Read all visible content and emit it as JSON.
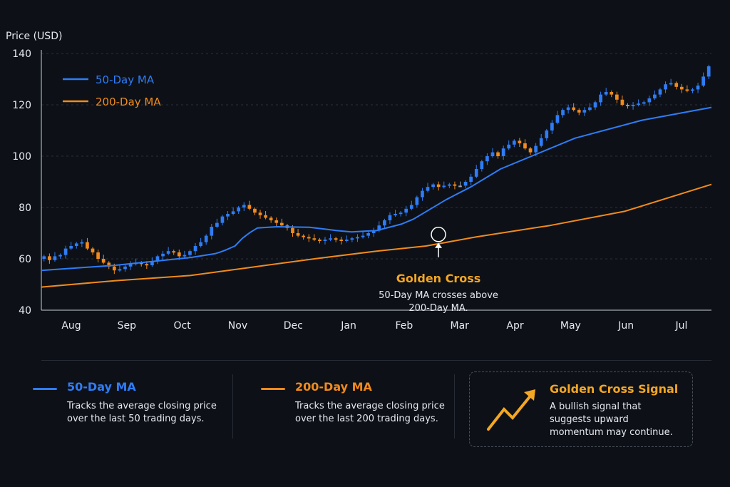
{
  "colors": {
    "bg": "#0d1117",
    "up": "#2f7cf6",
    "down": "#f28a1c",
    "neutral": "#9aa0a8",
    "ma50": "#2f7cf6",
    "ma200": "#f28a1c",
    "accent": "#f5a623"
  },
  "chart_data": {
    "type": "candlestick",
    "ylabel": "Price (USD)",
    "ylim": [
      40,
      140
    ],
    "yticks": [
      40,
      60,
      80,
      100,
      120,
      140
    ],
    "months": [
      "Aug",
      "Sep",
      "Oct",
      "Nov",
      "Dec",
      "Jan",
      "Feb",
      "Mar",
      "Apr",
      "May",
      "Jun",
      "Jul"
    ],
    "grid": true,
    "legend_position": "top-left",
    "legend": [
      {
        "name": "50-Day MA",
        "color": "#2f7cf6"
      },
      {
        "name": "200-Day MA",
        "color": "#f28a1c"
      }
    ],
    "candle_closes": [
      61,
      59.5,
      61,
      61.5,
      64,
      65,
      66,
      66.5,
      64,
      62.5,
      60,
      58.5,
      57,
      55.5,
      56,
      57,
      58,
      58.5,
      58,
      57.5,
      59,
      61,
      62,
      63,
      62.5,
      61,
      61.5,
      63,
      65,
      66.5,
      69,
      72.5,
      74,
      76.5,
      77.5,
      78.5,
      80,
      81,
      79.5,
      78,
      77,
      76,
      75,
      74,
      73,
      72,
      70,
      69,
      68.5,
      68,
      67.5,
      67,
      67.5,
      68,
      67.5,
      67,
      67.5,
      68,
      68.5,
      69,
      70,
      71,
      73,
      75,
      77,
      77.5,
      78,
      79.5,
      81,
      84,
      86.5,
      88,
      89,
      88,
      88.5,
      89,
      88.5,
      88.5,
      90,
      92,
      95,
      98,
      100,
      101.5,
      100,
      103,
      104.5,
      106,
      105,
      103,
      101.5,
      104,
      107,
      110,
      113,
      116,
      118,
      119,
      118,
      117,
      118,
      119,
      121,
      124,
      125,
      124,
      122,
      120,
      119.5,
      120,
      120.5,
      121,
      122.5,
      124,
      126,
      128,
      128.5,
      127,
      126,
      125.5,
      126,
      127.5,
      131,
      135
    ],
    "ma50": [
      [
        0,
        55.5
      ],
      [
        30,
        57.5
      ],
      [
        55,
        60
      ],
      [
        60,
        60.5
      ],
      [
        70,
        62
      ],
      [
        72,
        62.6
      ],
      [
        74,
        63.3
      ],
      [
        78,
        65
      ],
      [
        81,
        68
      ],
      [
        84,
        70.2
      ],
      [
        87,
        72
      ],
      [
        95,
        72.5
      ],
      [
        108,
        72.3
      ],
      [
        115,
        71.5
      ],
      [
        119,
        71
      ],
      [
        125,
        70.5
      ],
      [
        135,
        71
      ],
      [
        145,
        73.5
      ],
      [
        150,
        75.5
      ],
      [
        163,
        83
      ],
      [
        173,
        88
      ],
      [
        185,
        95
      ],
      [
        215,
        107
      ],
      [
        242,
        114
      ],
      [
        270,
        119
      ]
    ],
    "ma200": [
      [
        0,
        49
      ],
      [
        30,
        51.5
      ],
      [
        60,
        53.5
      ],
      [
        83,
        56.5
      ],
      [
        110,
        60
      ],
      [
        135,
        63
      ],
      [
        155,
        65
      ],
      [
        175,
        68.5
      ],
      [
        205,
        73
      ],
      [
        235,
        78.5
      ],
      [
        270,
        89
      ]
    ],
    "annotation": {
      "title": "Golden Cross",
      "text_line1": "50-Day MA crosses above",
      "text_line2": "200-Day MA.",
      "x": 160,
      "y": 69.5
    }
  },
  "cards": [
    {
      "title": "50-Day MA",
      "desc": "Tracks the average closing price over the last 50 trading days."
    },
    {
      "title": "200-Day MA",
      "desc": "Tracks the average closing price over the last 200 trading days."
    }
  ],
  "signal": {
    "title": "Golden Cross Signal",
    "desc": "A bullish signal that suggests upward momentum may continue.",
    "icon": "trend-up-arrow-icon"
  }
}
